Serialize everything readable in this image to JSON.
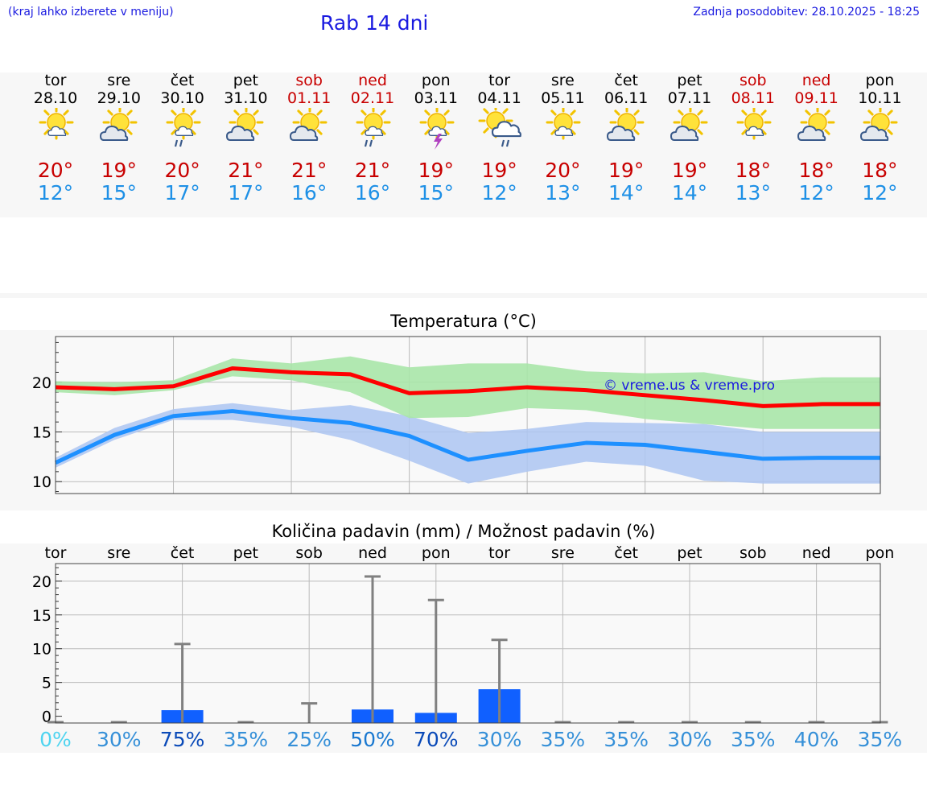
{
  "header": {
    "note": "(kraj lahko izberete v meniju)",
    "title": "Rab 14 dni",
    "updated": "Zadnja posodobitev: 28.10.2025 - 18:25"
  },
  "colors": {
    "link": "#1a1ae0",
    "weekend": "#c80000",
    "tmax": "#c80000",
    "tmin": "#1e90e6",
    "max_line": "#ff0000",
    "max_band": "#a8e6a8",
    "min_line": "#1e90ff",
    "min_band": "#adc6f2",
    "rain_bar": "#1060ff",
    "error_bar": "#808080"
  },
  "days": [
    {
      "name": "tor",
      "date": "28.10",
      "weekend": false,
      "icon": "partly-sunny-icon",
      "tmax": "20°",
      "tmin": "12°"
    },
    {
      "name": "sre",
      "date": "29.10",
      "weekend": false,
      "icon": "partly-cloudy-icon",
      "tmax": "19°",
      "tmin": "15°"
    },
    {
      "name": "čet",
      "date": "30.10",
      "weekend": false,
      "icon": "sun-rain-icon",
      "tmax": "20°",
      "tmin": "17°"
    },
    {
      "name": "pet",
      "date": "31.10",
      "weekend": false,
      "icon": "partly-cloudy-icon",
      "tmax": "21°",
      "tmin": "17°"
    },
    {
      "name": "sob",
      "date": "01.11",
      "weekend": true,
      "icon": "partly-cloudy-icon",
      "tmax": "21°",
      "tmin": "16°"
    },
    {
      "name": "ned",
      "date": "02.11",
      "weekend": true,
      "icon": "sun-rain-icon",
      "tmax": "21°",
      "tmin": "16°"
    },
    {
      "name": "pon",
      "date": "03.11",
      "weekend": false,
      "icon": "sun-thunder-icon",
      "tmax": "19°",
      "tmin": "15°"
    },
    {
      "name": "tor",
      "date": "04.11",
      "weekend": false,
      "icon": "cloud-rain-icon",
      "tmax": "19°",
      "tmin": "12°"
    },
    {
      "name": "sre",
      "date": "05.11",
      "weekend": false,
      "icon": "partly-sunny-icon",
      "tmax": "20°",
      "tmin": "13°"
    },
    {
      "name": "čet",
      "date": "06.11",
      "weekend": false,
      "icon": "partly-cloudy-icon",
      "tmax": "19°",
      "tmin": "14°"
    },
    {
      "name": "pet",
      "date": "07.11",
      "weekend": false,
      "icon": "partly-cloudy-icon",
      "tmax": "19°",
      "tmin": "14°"
    },
    {
      "name": "sob",
      "date": "08.11",
      "weekend": true,
      "icon": "partly-sunny-icon",
      "tmax": "18°",
      "tmin": "13°"
    },
    {
      "name": "ned",
      "date": "09.11",
      "weekend": true,
      "icon": "partly-cloudy-icon",
      "tmax": "18°",
      "tmin": "12°"
    },
    {
      "name": "pon",
      "date": "10.11",
      "weekend": false,
      "icon": "partly-cloudy-icon",
      "tmax": "18°",
      "tmin": "12°"
    }
  ],
  "chart_data": [
    {
      "type": "line",
      "title": "Temperatura (°C)",
      "watermark": "© vreme.us & vreme.pro",
      "x": [
        0,
        1,
        2,
        3,
        4,
        5,
        6,
        7,
        8,
        9,
        10,
        11,
        12,
        13,
        13.99
      ],
      "ylim": [
        8.8,
        24.6
      ],
      "yticks": [
        10,
        15,
        20
      ],
      "grid": true,
      "series": [
        {
          "values": [
            19.5,
            19.3,
            19.6,
            21.4,
            21.0,
            20.8,
            18.9,
            19.1,
            19.5,
            19.2,
            18.7,
            18.2,
            17.6,
            17.8,
            17.8
          ],
          "band_low": [
            19.0,
            18.7,
            19.2,
            20.6,
            20.2,
            19.0,
            16.4,
            16.5,
            17.4,
            17.2,
            16.3,
            15.8,
            15.3,
            15.3,
            15.3
          ],
          "band_high": [
            20.1,
            20.0,
            20.2,
            22.4,
            21.9,
            22.6,
            21.5,
            21.9,
            21.9,
            21.1,
            20.9,
            21.0,
            20.1,
            20.5,
            20.5
          ]
        },
        {
          "values": [
            11.9,
            14.7,
            16.6,
            17.1,
            16.4,
            15.9,
            14.6,
            12.2,
            13.1,
            13.9,
            13.7,
            13.0,
            12.3,
            12.4,
            12.4
          ],
          "band_low": [
            11.4,
            14.2,
            16.2,
            16.2,
            15.5,
            14.2,
            12.1,
            9.8,
            11.0,
            12.0,
            11.6,
            10.1,
            9.8,
            9.8,
            9.8
          ],
          "band_high": [
            12.4,
            15.4,
            17.3,
            17.9,
            17.2,
            17.7,
            16.6,
            14.9,
            15.3,
            16.0,
            15.9,
            15.8,
            15.0,
            15.0,
            15.0
          ]
        }
      ]
    },
    {
      "type": "bar",
      "title": "Količina padavin (mm) / Možnost padavin (%)",
      "categories": [
        "tor",
        "sre",
        "čet",
        "pet",
        "sob",
        "ned",
        "pon",
        "tor",
        "sre",
        "čet",
        "pet",
        "sob",
        "ned",
        "pon"
      ],
      "values": [
        0,
        0,
        0.9,
        0,
        0,
        1.0,
        0.5,
        4.0,
        0,
        0,
        0,
        0,
        0,
        0
      ],
      "error_max": [
        0,
        0,
        10.7,
        0,
        1.9,
        20.7,
        17.2,
        11.3,
        0,
        0,
        0,
        0,
        0,
        0
      ],
      "probability_labels": [
        "0%",
        "30%",
        "75%",
        "35%",
        "25%",
        "50%",
        "70%",
        "30%",
        "35%",
        "35%",
        "30%",
        "35%",
        "40%",
        "35%"
      ],
      "probability": [
        0,
        30,
        75,
        35,
        25,
        50,
        70,
        30,
        35,
        35,
        30,
        35,
        40,
        35
      ],
      "ylim": [
        -1,
        22.6
      ],
      "yticks": [
        0,
        5,
        10,
        15,
        20
      ],
      "grid": true
    }
  ]
}
